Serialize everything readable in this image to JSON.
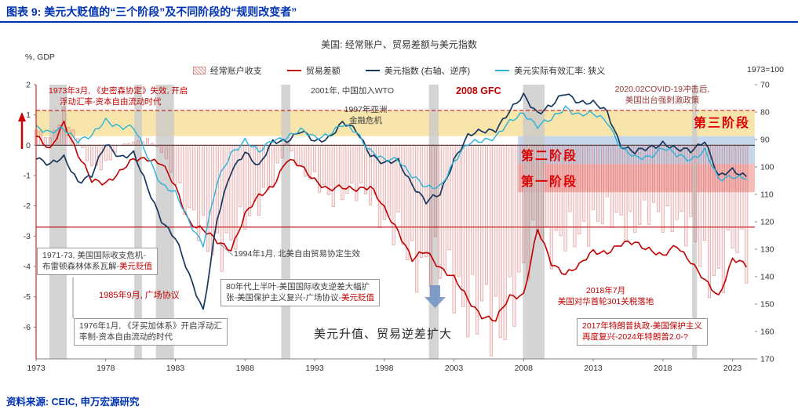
{
  "header": {
    "title": "图表 9: 美元大贬值的“三个阶段”及不同阶段的“规则改变者”"
  },
  "footer": {
    "source": "资料来源: CEIC, 申万宏源研究"
  },
  "chart_data": {
    "type": "combo",
    "title": "美国: 经常账户、贸易差额与美元指数",
    "left_axis": {
      "label": "%, GDP",
      "ticks": [
        2,
        1,
        0,
        -1,
        -2,
        -3,
        -4,
        -5,
        -6
      ],
      "min": -7.05,
      "max": 2
    },
    "right_axis": {
      "label": "1973=100",
      "ticks": [
        70,
        80,
        90,
        100,
        110,
        120,
        130,
        140,
        150,
        160,
        170
      ],
      "min": 70,
      "max": 170,
      "inverted": true
    },
    "x_ticks": [
      1973,
      1978,
      1983,
      1988,
      1993,
      1998,
      2003,
      2008,
      2013,
      2018,
      2023
    ],
    "x_range": [
      1973,
      2024.6
    ],
    "years": [
      1973,
      1974,
      1975,
      1976,
      1977,
      1978,
      1979,
      1980,
      1981,
      1982,
      1983,
      1984,
      1985,
      1986,
      1987,
      1988,
      1989,
      1990,
      1991,
      1992,
      1993,
      1994,
      1995,
      1996,
      1997,
      1998,
      1999,
      2000,
      2001,
      2002,
      2003,
      2004,
      2005,
      2006,
      2007,
      2008,
      2009,
      2010,
      2011,
      2012,
      2013,
      2014,
      2015,
      2016,
      2017,
      2018,
      2019,
      2020,
      2021,
      2022,
      2023,
      2024
    ],
    "series": [
      {
        "name": "经常账户收支",
        "type": "bar",
        "axis": "left",
        "color": "#e06a6a",
        "values": [
          0.5,
          0.2,
          1.1,
          0.2,
          -0.7,
          -0.7,
          0.0,
          0.1,
          0.2,
          -0.2,
          -1.1,
          -2.4,
          -2.9,
          -3.3,
          -3.5,
          -2.4,
          -1.8,
          -1.3,
          0.1,
          -0.8,
          -1.2,
          -1.7,
          -1.5,
          -1.6,
          -1.7,
          -2.4,
          -3.0,
          -3.9,
          -3.7,
          -4.2,
          -4.5,
          -5.2,
          -5.7,
          -6.0,
          -5.1,
          -4.6,
          -2.6,
          -3.2,
          -3.2,
          -2.9,
          -2.4,
          -2.4,
          -2.5,
          -2.5,
          -2.3,
          -2.4,
          -2.3,
          -3.1,
          -3.9,
          -4.3,
          -3.4,
          -3.7
        ]
      },
      {
        "name": "贸易差额",
        "type": "line",
        "axis": "left",
        "color": "#c00000",
        "values": [
          0.3,
          -0.2,
          0.8,
          -0.3,
          -1.2,
          -1.2,
          -0.9,
          -0.5,
          -0.4,
          -0.6,
          -1.4,
          -2.5,
          -2.8,
          -3.2,
          -3.4,
          -2.3,
          -1.7,
          -1.3,
          -0.5,
          -0.7,
          -1.1,
          -1.5,
          -1.4,
          -1.4,
          -1.4,
          -2.1,
          -2.8,
          -3.8,
          -3.5,
          -4.0,
          -4.4,
          -5.1,
          -5.6,
          -5.8,
          -5.0,
          -4.9,
          -2.8,
          -3.9,
          -4.2,
          -4.0,
          -3.5,
          -3.5,
          -3.3,
          -3.2,
          -3.4,
          -3.7,
          -3.3,
          -3.8,
          -4.5,
          -5.0,
          -3.7,
          -4.0
        ]
      },
      {
        "name": "美元指数 (右轴、逆序)",
        "type": "line",
        "axis": "right",
        "color": "#17375e",
        "values": [
          96,
          99,
          97,
          105,
          103,
          92,
          96,
          95,
          108,
          119,
          126,
          140,
          152,
          119,
          102,
          94,
          100,
          91,
          90,
          87,
          91,
          89,
          84,
          87,
          95,
          99,
          98,
          106,
          113,
          110,
          97,
          89,
          87,
          86,
          80,
          74,
          80,
          78,
          73,
          76,
          77,
          80,
          92,
          95,
          93,
          91,
          94,
          94,
          90,
          104,
          101,
          103
        ]
      },
      {
        "name": "美元实际有效汇率: 狭义",
        "type": "line",
        "axis": "right",
        "color": "#29b3d9",
        "values": [
          85,
          88,
          86,
          90,
          89,
          83,
          85,
          86,
          96,
          106,
          110,
          120,
          128,
          106,
          95,
          90,
          95,
          90,
          89,
          87,
          89,
          88,
          85,
          87,
          94,
          98,
          97,
          103,
          108,
          107,
          98,
          92,
          90,
          89,
          84,
          80,
          85,
          83,
          78,
          81,
          81,
          83,
          93,
          97,
          96,
          93,
          96,
          97,
          94,
          105,
          103,
          104
        ]
      }
    ],
    "recessions": [
      [
        1973.95,
        1975.2
      ],
      [
        1980.05,
        1980.6
      ],
      [
        1981.6,
        1982.9
      ],
      [
        1990.6,
        1991.25
      ],
      [
        2001.2,
        2001.9
      ],
      [
        2007.95,
        2009.5
      ],
      [
        2020.1,
        2020.45
      ]
    ],
    "stage_bands": [
      {
        "label": "第三阶段",
        "color": "#f6e2a3",
        "opacity": 0.9,
        "x1": 1973,
        "x2": 2024.6,
        "y1": 0.3,
        "y2": 1.15
      },
      {
        "label": "第二阶段",
        "color": "#bcd0e8",
        "opacity": 0.85,
        "x1": 2007.6,
        "x2": 2024.6,
        "y1": -0.62,
        "y2": 0.3
      },
      {
        "label": "第一阶段",
        "color": "#f3b0ae",
        "opacity": 0.85,
        "x1": 2007.6,
        "x2": 2024.6,
        "y1": -1.55,
        "y2": -0.62
      }
    ],
    "ref_lines": [
      {
        "value": 1.15,
        "style": "dashed",
        "color": "#c00000"
      },
      {
        "value": -2.7,
        "style": "solid",
        "color": "#c00000"
      }
    ]
  },
  "annotations": {
    "smithsonian": {
      "line1": "1973年3月, 《史密森协定》失效, 开启",
      "line2": "浮动汇率-资本自由流动时代"
    },
    "wto": "2001年, 中国加入WTO",
    "asia_crisis": {
      "line1": "1997年亚洲",
      "line2": "金融危机"
    },
    "gfc": "2008 GFC",
    "covid": {
      "line1": "2020.02COVID-19冲击后,",
      "line2": "美国出台强刺激政策"
    },
    "bretton": {
      "line1": "1971-73, 美国国际收支危机-",
      "line2": "布雷顿森林体系瓦解-",
      "highlight": "美元贬值"
    },
    "plaza": "1985年9月, 广场协议",
    "jamaica": {
      "line1": "1976年1月, 《牙买加体系》开启浮动汇",
      "line2": "率制-资本自由流动的时代"
    },
    "nafta": "1994年1月, 北美自由贸易协定生效",
    "eighties": {
      "line1": "80年代上半叶-美国国际收支逆差大幅扩",
      "line2": "张-美国保护主义复兴-广场协议-",
      "highlight": "美元贬值"
    },
    "usd_up": "美元升值、贸易逆差扩大",
    "tariff": {
      "line1": "2018年7月",
      "line2": "美国对华首轮301关税落地"
    },
    "trump": {
      "line1": "2017年特朗普执政-美国保护主义",
      "line2": "再度复兴-2024年特朗普2.0-?"
    }
  }
}
